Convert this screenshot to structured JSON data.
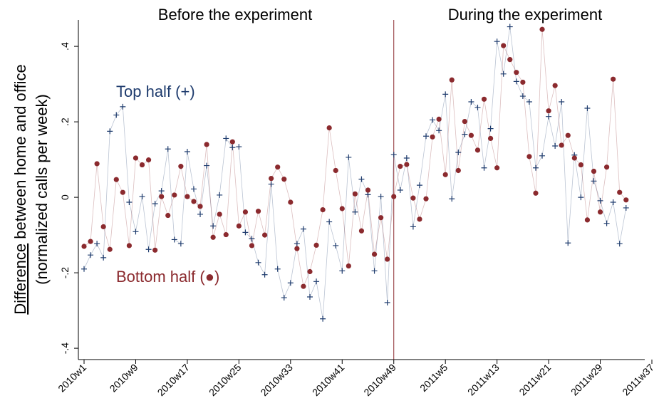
{
  "chart_data": {
    "type": "scatter",
    "annotations": {
      "before": "Before the experiment",
      "during": "During the experiment",
      "top": "Top half (+)",
      "bottom": "Bottom half (●)"
    },
    "ylabel": [
      "Difference",
      "between home and office",
      "(normalized calls per week)"
    ],
    "experiment_start": "2010w49",
    "x": [
      "2010w1",
      "2010w2",
      "2010w3",
      "2010w4",
      "2010w5",
      "2010w6",
      "2010w7",
      "2010w8",
      "2010w9",
      "2010w10",
      "2010w11",
      "2010w12",
      "2010w13",
      "2010w14",
      "2010w15",
      "2010w16",
      "2010w17",
      "2010w18",
      "2010w19",
      "2010w20",
      "2010w21",
      "2010w22",
      "2010w23",
      "2010w24",
      "2010w25",
      "2010w26",
      "2010w27",
      "2010w28",
      "2010w29",
      "2010w30",
      "2010w31",
      "2010w32",
      "2010w33",
      "2010w34",
      "2010w35",
      "2010w36",
      "2010w37",
      "2010w38",
      "2010w39",
      "2010w40",
      "2010w41",
      "2010w42",
      "2010w43",
      "2010w44",
      "2010w45",
      "2010w46",
      "2010w47",
      "2010w48",
      "2010w49",
      "2010w50",
      "2010w51",
      "2010w52",
      "2011w1",
      "2011w2",
      "2011w3",
      "2011w4",
      "2011w5",
      "2011w6",
      "2011w7",
      "2011w8",
      "2011w9",
      "2011w10",
      "2011w11",
      "2011w12",
      "2011w13",
      "2011w14",
      "2011w15",
      "2011w16",
      "2011w17",
      "2011w18",
      "2011w19",
      "2011w20",
      "2011w21",
      "2011w22",
      "2011w23",
      "2011w24",
      "2011w25",
      "2011w26",
      "2011w27",
      "2011w28",
      "2011w29",
      "2011w30",
      "2011w31",
      "2011w32",
      "2011w33"
    ],
    "series": [
      {
        "name": "Top half",
        "color": "#1f3c6e",
        "marker": "plus",
        "values": [
          -0.19,
          -0.153,
          -0.123,
          -0.16,
          0.175,
          0.218,
          0.24,
          -0.013,
          -0.091,
          0.002,
          -0.138,
          -0.017,
          0.017,
          0.128,
          -0.112,
          -0.123,
          0.121,
          0.022,
          -0.045,
          0.084,
          -0.076,
          0.006,
          0.156,
          0.132,
          0.134,
          -0.093,
          -0.11,
          -0.173,
          -0.205,
          0.035,
          -0.19,
          -0.266,
          -0.227,
          -0.123,
          -0.084,
          -0.264,
          -0.223,
          -0.322,
          -0.065,
          -0.128,
          -0.195,
          0.106,
          -0.039,
          0.048,
          0.007,
          -0.195,
          0.002,
          -0.279,
          0.113,
          0.019,
          0.104,
          -0.078,
          0.032,
          0.162,
          0.205,
          0.177,
          0.273,
          -0.004,
          0.119,
          0.167,
          0.253,
          0.238,
          0.078,
          0.182,
          0.413,
          0.327,
          0.452,
          0.307,
          0.268,
          0.253,
          0.078,
          0.11,
          0.214,
          0.136,
          0.253,
          -0.121,
          0.112,
          0,
          0.236,
          0.043,
          -0.009,
          -0.069,
          -0.013,
          -0.123,
          -0.028
        ]
      },
      {
        "name": "Bottom half",
        "color": "#8b2a2e",
        "marker": "circle",
        "values": [
          -0.13,
          -0.117,
          0.089,
          -0.078,
          -0.138,
          0.047,
          0.013,
          -0.128,
          0.104,
          0.086,
          0.099,
          -0.14,
          0.002,
          -0.048,
          0.006,
          0.082,
          0.002,
          -0.011,
          -0.024,
          0.14,
          -0.106,
          -0.045,
          -0.099,
          0.147,
          -0.076,
          -0.039,
          -0.128,
          -0.037,
          -0.1,
          0.05,
          0.08,
          0.048,
          -0.013,
          -0.136,
          -0.236,
          -0.197,
          -0.127,
          -0.033,
          0.184,
          0.071,
          -0.03,
          -0.182,
          0.009,
          -0.089,
          0.019,
          -0.151,
          -0.054,
          -0.164,
          0.002,
          0.082,
          0.087,
          -0.002,
          -0.058,
          -0.004,
          0.16,
          0.207,
          0.06,
          0.311,
          0.071,
          0.201,
          0.164,
          0.125,
          0.26,
          0.156,
          0.078,
          0.402,
          0.365,
          0.331,
          0.305,
          0.108,
          0.011,
          0.445,
          0.229,
          0.296,
          0.138,
          0.164,
          0.104,
          0.086,
          -0.06,
          0.069,
          -0.039,
          0.08,
          0.313,
          0.013,
          -0.007
        ]
      }
    ],
    "xlim": [
      "2010w1",
      "2011w37"
    ],
    "xticks": [
      "2010w1",
      "2010w9",
      "2010w17",
      "2010w25",
      "2010w33",
      "2010w41",
      "2010w49",
      "2011w5",
      "2011w13",
      "2011w21",
      "2011w29",
      "2011w37"
    ],
    "ylim": [
      -0.43,
      0.47
    ],
    "yticks": [
      {
        "value": -0.4,
        "label": "-.4"
      },
      {
        "value": -0.2,
        "label": "-.2"
      },
      {
        "value": 0,
        "label": "0"
      },
      {
        "value": 0.2,
        "label": ".2"
      },
      {
        "value": 0.4,
        "label": ".4"
      }
    ],
    "grid": false
  }
}
